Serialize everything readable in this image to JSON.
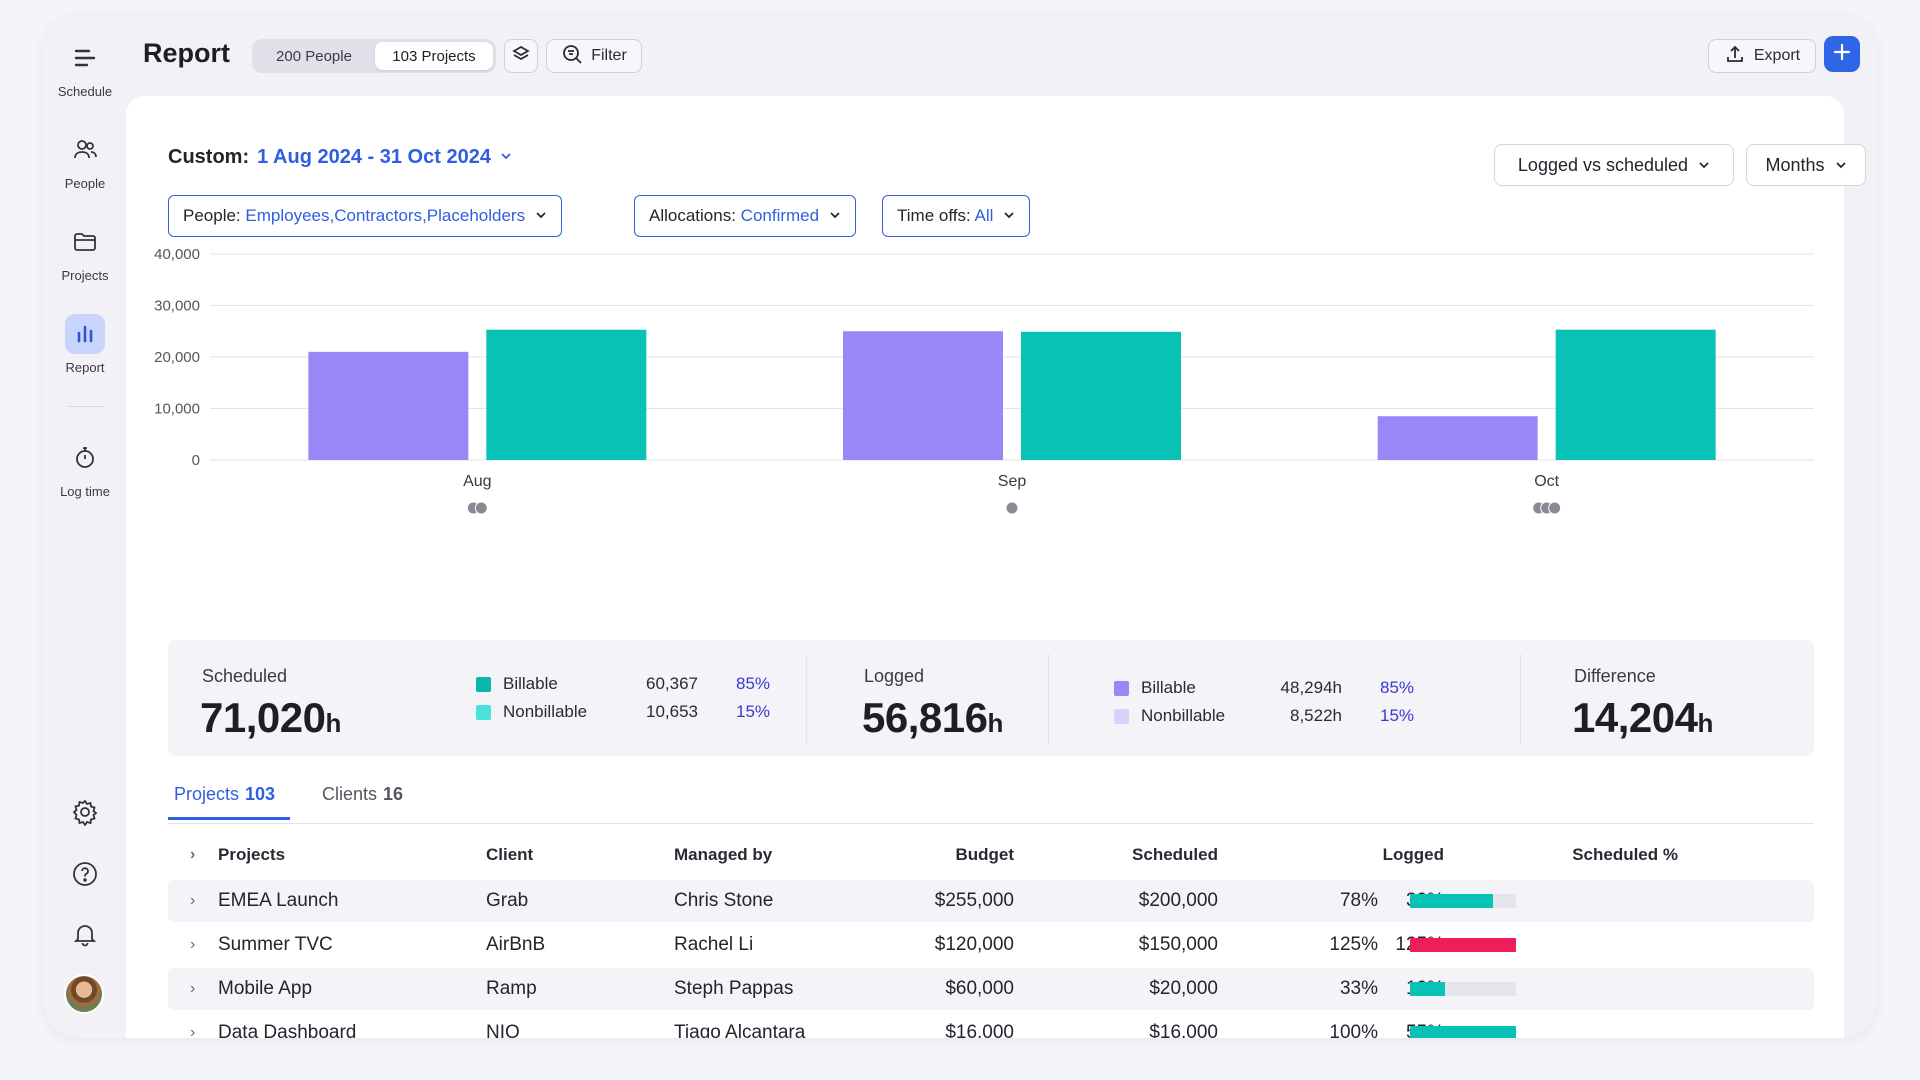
{
  "sidebar": {
    "items": [
      {
        "label": "Schedule",
        "icon": "menu-lines-icon"
      },
      {
        "label": "People",
        "icon": "people-icon"
      },
      {
        "label": "Projects",
        "icon": "folder-icon"
      },
      {
        "label": "Report",
        "icon": "bar-chart-icon",
        "active": true
      },
      {
        "label": "Log time",
        "icon": "stopwatch-icon"
      }
    ],
    "bottom_icons": [
      "settings-icon",
      "help-icon",
      "bell-icon",
      "avatar"
    ]
  },
  "header": {
    "title": "Report",
    "toggle": [
      "200 People",
      "103 Projects"
    ],
    "toggle_selected": 1,
    "filter_label": "Filter",
    "export_label": "Export"
  },
  "controls": {
    "custom_prefix": "Custom:",
    "date_range": "1 Aug 2024 - 31 Oct 2024",
    "view_select": "Logged vs scheduled",
    "period_select": "Months",
    "filters": [
      {
        "key": "People:",
        "value": "Employees,Contractors,Placeholders"
      },
      {
        "key": "Allocations:",
        "value": "Confirmed"
      },
      {
        "key": "Time offs:",
        "value": "All"
      }
    ]
  },
  "chart_data": {
    "type": "bar",
    "categories": [
      "Aug",
      "Sep",
      "Oct"
    ],
    "series": [
      {
        "values": [
          21000,
          25000,
          8500
        ],
        "color": "#9b86f7"
      },
      {
        "values": [
          25300,
          24900,
          25300
        ],
        "color": "#08c2b6"
      }
    ],
    "yticks": [
      "40,000",
      "30,000",
      "20,000",
      "10,000",
      "0"
    ],
    "ylim": [
      0,
      40000
    ],
    "grid": true,
    "markers": [
      2,
      1,
      3
    ]
  },
  "summary": {
    "scheduled": {
      "title": "Scheduled",
      "total": "71,020",
      "unit": "h",
      "rows": [
        {
          "label": "Billable",
          "value": "60,367",
          "pct": "85%",
          "color": "#08b8ad"
        },
        {
          "label": "Nonbillable",
          "value": "10,653",
          "pct": "15%",
          "color": "#49e3da"
        }
      ]
    },
    "logged": {
      "title": "Logged",
      "total": "56,816",
      "unit": "h",
      "rows": [
        {
          "label": "Billable",
          "value": "48,294h",
          "pct": "85%",
          "color": "#9b86f7"
        },
        {
          "label": "Nonbillable",
          "value": "8,522h",
          "pct": "15%",
          "color": "#d8d2fb"
        }
      ]
    },
    "difference": {
      "title": "Difference",
      "total": "14,204",
      "unit": "h"
    }
  },
  "tabs": [
    {
      "label": "Projects",
      "count": "103"
    },
    {
      "label": "Clients",
      "count": "16"
    }
  ],
  "table": {
    "headers": [
      "Projects",
      "Client",
      "Managed by",
      "Budget",
      "Scheduled",
      "Logged",
      "Scheduled %"
    ],
    "rows": [
      {
        "project": "EMEA Launch",
        "client": "Grab",
        "manager": "Chris Stone",
        "budget": "$255,000",
        "scheduled": "$200,000",
        "logged": "30%",
        "scheduled_pct": "78%",
        "fill": 0.78,
        "color": "#08c2b6"
      },
      {
        "project": "Summer TVC",
        "client": "AirBnB",
        "manager": "Rachel Li",
        "budget": "$120,000",
        "scheduled": "$150,000",
        "logged": "125%",
        "scheduled_pct": "125%",
        "fill": 1.0,
        "color": "#ec1e5c"
      },
      {
        "project": "Mobile App",
        "client": "Ramp",
        "manager": "Steph Pappas",
        "budget": "$60,000",
        "scheduled": "$20,000",
        "logged": "10%",
        "scheduled_pct": "33%",
        "fill": 0.33,
        "color": "#08c2b6"
      },
      {
        "project": "Data Dashboard",
        "client": "NIO",
        "manager": "Tiago Alcantara",
        "budget": "$16,000",
        "scheduled": "$16,000",
        "logged": "55%",
        "scheduled_pct": "100%",
        "fill": 1.0,
        "color": "#08c2b6"
      }
    ]
  }
}
